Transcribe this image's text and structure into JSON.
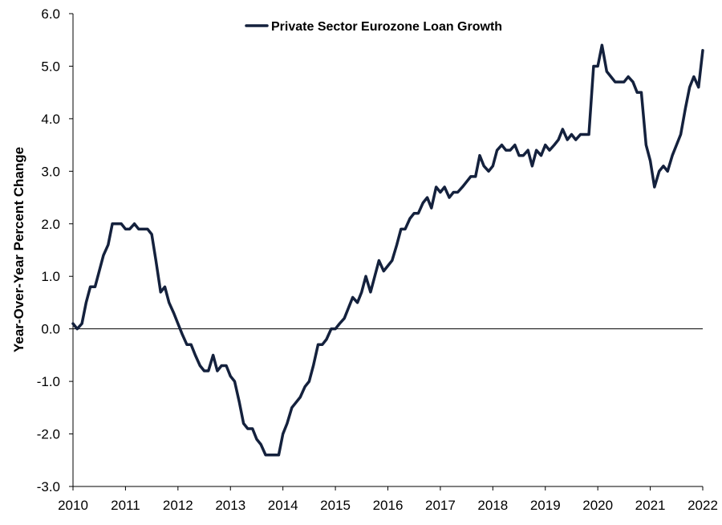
{
  "chart_data": {
    "type": "line",
    "title": "",
    "xlabel": "",
    "ylabel": "Year-Over-Year Percent Change",
    "xlim": [
      2010,
      2022
    ],
    "ylim": [
      -3.0,
      6.0
    ],
    "x_ticks": [
      "2010",
      "2011",
      "2012",
      "2013",
      "2014",
      "2015",
      "2016",
      "2017",
      "2018",
      "2019",
      "2020",
      "2021",
      "2022"
    ],
    "y_ticks": [
      "6.0",
      "5.0",
      "4.0",
      "3.0",
      "2.0",
      "1.0",
      "0.0",
      "-1.0",
      "-2.0",
      "-3.0"
    ],
    "legend": "top-center",
    "grid": false,
    "series": [
      {
        "name": "Private Sector Eurozone Loan Growth",
        "color": "#14213d",
        "x": [
          2010.0,
          2010.08,
          2010.17,
          2010.25,
          2010.33,
          2010.42,
          2010.5,
          2010.58,
          2010.67,
          2010.75,
          2010.83,
          2010.92,
          2011.0,
          2011.08,
          2011.17,
          2011.25,
          2011.33,
          2011.42,
          2011.5,
          2011.58,
          2011.67,
          2011.75,
          2011.83,
          2011.92,
          2012.0,
          2012.08,
          2012.17,
          2012.25,
          2012.33,
          2012.42,
          2012.5,
          2012.58,
          2012.67,
          2012.75,
          2012.83,
          2012.92,
          2013.0,
          2013.08,
          2013.17,
          2013.25,
          2013.33,
          2013.42,
          2013.5,
          2013.58,
          2013.67,
          2013.75,
          2013.83,
          2013.92,
          2014.0,
          2014.08,
          2014.17,
          2014.25,
          2014.33,
          2014.42,
          2014.5,
          2014.58,
          2014.67,
          2014.75,
          2014.83,
          2014.92,
          2015.0,
          2015.08,
          2015.17,
          2015.25,
          2015.33,
          2015.42,
          2015.5,
          2015.58,
          2015.67,
          2015.75,
          2015.83,
          2015.92,
          2016.0,
          2016.08,
          2016.17,
          2016.25,
          2016.33,
          2016.42,
          2016.5,
          2016.58,
          2016.67,
          2016.75,
          2016.83,
          2016.92,
          2017.0,
          2017.08,
          2017.17,
          2017.25,
          2017.33,
          2017.42,
          2017.5,
          2017.58,
          2017.67,
          2017.75,
          2017.83,
          2017.92,
          2018.0,
          2018.08,
          2018.17,
          2018.25,
          2018.33,
          2018.42,
          2018.5,
          2018.58,
          2018.67,
          2018.75,
          2018.83,
          2018.92,
          2019.0,
          2019.08,
          2019.17,
          2019.25,
          2019.33,
          2019.42,
          2019.5,
          2019.58,
          2019.67,
          2019.75,
          2019.83,
          2019.92,
          2020.0,
          2020.08,
          2020.17,
          2020.25,
          2020.33,
          2020.42,
          2020.5,
          2020.58,
          2020.67,
          2020.75,
          2020.83,
          2020.92,
          2021.0,
          2021.08,
          2021.17,
          2021.25,
          2021.33,
          2021.42,
          2021.5,
          2021.58,
          2021.67,
          2021.75,
          2021.83,
          2021.92,
          2022.0
        ],
        "values": [
          0.1,
          0.0,
          0.1,
          0.5,
          0.8,
          0.8,
          1.1,
          1.4,
          1.6,
          2.0,
          2.0,
          2.0,
          1.9,
          1.9,
          2.0,
          1.9,
          1.9,
          1.9,
          1.8,
          1.3,
          0.7,
          0.8,
          0.5,
          0.3,
          0.1,
          -0.1,
          -0.3,
          -0.3,
          -0.5,
          -0.7,
          -0.8,
          -0.8,
          -0.5,
          -0.8,
          -0.7,
          -0.7,
          -0.9,
          -1.0,
          -1.4,
          -1.8,
          -1.9,
          -1.9,
          -2.1,
          -2.2,
          -2.4,
          -2.4,
          -2.4,
          -2.4,
          -2.0,
          -1.8,
          -1.5,
          -1.4,
          -1.3,
          -1.1,
          -1.0,
          -0.7,
          -0.3,
          -0.3,
          -0.2,
          0.0,
          0.0,
          0.1,
          0.2,
          0.4,
          0.6,
          0.5,
          0.7,
          1.0,
          0.7,
          1.0,
          1.3,
          1.1,
          1.2,
          1.3,
          1.6,
          1.9,
          1.9,
          2.1,
          2.2,
          2.2,
          2.4,
          2.5,
          2.3,
          2.7,
          2.6,
          2.7,
          2.5,
          2.6,
          2.6,
          2.7,
          2.8,
          2.9,
          2.9,
          3.3,
          3.1,
          3.0,
          3.1,
          3.4,
          3.5,
          3.4,
          3.4,
          3.5,
          3.3,
          3.3,
          3.4,
          3.1,
          3.4,
          3.3,
          3.5,
          3.4,
          3.5,
          3.6,
          3.8,
          3.6,
          3.7,
          3.6,
          3.7,
          3.7,
          3.7,
          5.0,
          5.0,
          5.4,
          4.9,
          4.8,
          4.7,
          4.7,
          4.7,
          4.8,
          4.7,
          4.5,
          4.5,
          3.5,
          3.2,
          2.7,
          3.0,
          3.1,
          3.0,
          3.3,
          3.5,
          3.7,
          4.2,
          4.6,
          4.8,
          4.6,
          5.3
        ]
      }
    ]
  }
}
